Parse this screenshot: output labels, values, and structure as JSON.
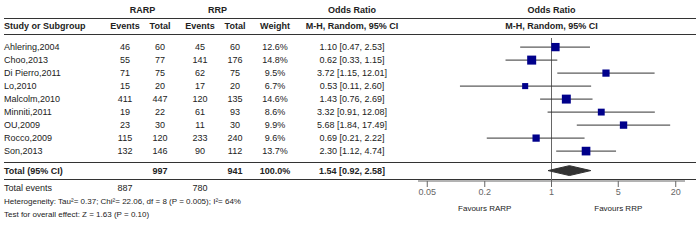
{
  "chart_data": {
    "type": "forest",
    "log": "x",
    "grid": false,
    "color": "#00008B",
    "xlim": [
      0.04,
      25
    ],
    "xticks": [
      0.05,
      0.2,
      1,
      5,
      20
    ],
    "reference_line": 1,
    "axis_labels": [
      "Favours RARP",
      "Favours RRP"
    ],
    "group_headers": [
      "RARP",
      "RRP",
      "Odds Ratio",
      "Odds Ratio"
    ],
    "column_headers": [
      "Study or Subgroup",
      "Events",
      "Total",
      "Events",
      "Total",
      "Weight",
      "M-H, Random, 95% CI",
      "M-H, Random, 95% CI"
    ],
    "categories": [
      "Ahlering,2004",
      "Choo,2013",
      "Di Pierro,2011",
      "Lo,2010",
      "Malcolm,2010",
      "Minniti,2011",
      "OU,2009",
      "Rocco,2009",
      "Son,2013"
    ],
    "rarp_events": [
      46,
      55,
      71,
      15,
      411,
      19,
      23,
      115,
      132
    ],
    "rarp_total": [
      60,
      77,
      75,
      20,
      447,
      22,
      30,
      120,
      146
    ],
    "rrp_events": [
      45,
      141,
      62,
      17,
      120,
      61,
      11,
      233,
      90
    ],
    "rrp_total": [
      60,
      176,
      75,
      20,
      135,
      93,
      30,
      240,
      112
    ],
    "weights": [
      12.6,
      14.8,
      9.5,
      6.7,
      14.6,
      8.6,
      9.9,
      9.6,
      13.7
    ],
    "weight_labels": [
      "12.6%",
      "14.8%",
      "9.5%",
      "6.7%",
      "14.6%",
      "8.6%",
      "9.9%",
      "9.6%",
      "13.7%"
    ],
    "values": [
      1.1,
      0.62,
      3.72,
      0.53,
      1.43,
      3.32,
      5.68,
      0.69,
      2.3
    ],
    "ci_low": [
      0.47,
      0.33,
      1.15,
      0.11,
      0.76,
      0.91,
      1.84,
      0.21,
      1.12
    ],
    "ci_high": [
      2.53,
      1.15,
      12.01,
      2.6,
      2.69,
      12.08,
      17.49,
      2.22,
      4.74
    ],
    "value_labels": [
      "1.10 [0.47, 2.53]",
      "0.62 [0.33, 1.15]",
      "3.72 [1.15, 12.01]",
      "0.53 [0.11, 2.60]",
      "1.43 [0.76, 2.69]",
      "3.32 [0.91, 12.08]",
      "5.68 [1.84, 17.49]",
      "0.69 [0.21, 2.22]",
      "2.30 [1.12, 4.74]"
    ],
    "total": {
      "label": "Total (95% CI)",
      "rarp_total": 997,
      "rrp_total": 941,
      "weight": 100.0,
      "weight_label": "100.0%",
      "value": 1.54,
      "ci_low": 0.92,
      "ci_high": 2.58,
      "value_label": "1.54 [0.92, 2.58]",
      "events_label": "Total events",
      "rarp_events": 887,
      "rrp_events": 780
    },
    "footnotes": [
      "Heterogeneity: Tau²= 0.37; Chi²= 22.06, df = 8 (P = 0.005); I²= 64%",
      "Test for overall effect: Z = 1.63 (P = 0.10)"
    ]
  }
}
